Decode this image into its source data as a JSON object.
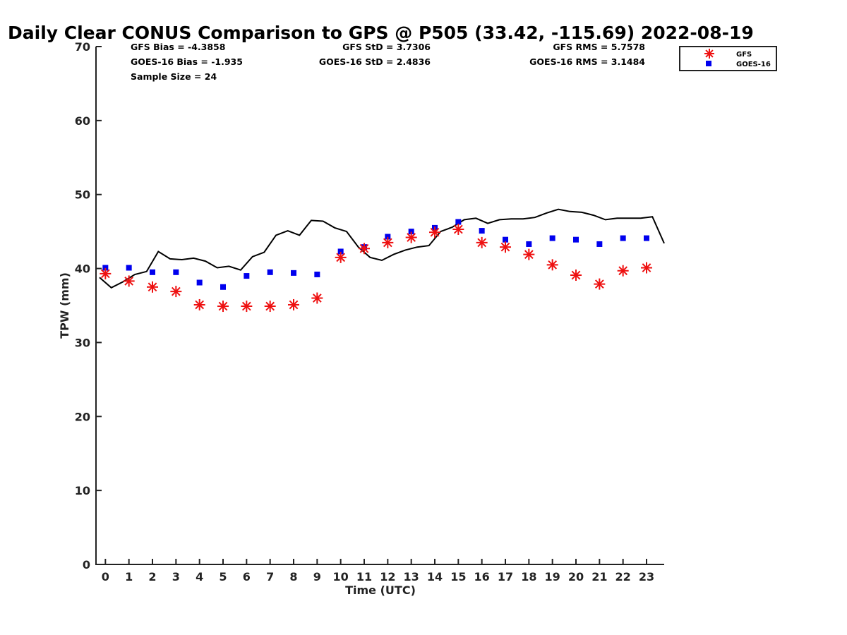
{
  "chart_data": {
    "type": "scatter",
    "title": "Daily Clear CONUS Comparison to GPS @ P505 (33.42, -115.69) 2022-08-19",
    "xlabel": "Time (UTC)",
    "ylabel": "TPW (mm)",
    "xlim": [
      -0.4,
      23.75
    ],
    "ylim": [
      0,
      70
    ],
    "xticks": [
      0,
      1,
      2,
      3,
      4,
      5,
      6,
      7,
      8,
      9,
      10,
      11,
      12,
      13,
      14,
      15,
      16,
      17,
      18,
      19,
      20,
      21,
      22,
      23
    ],
    "yticks": [
      0,
      10,
      20,
      30,
      40,
      50,
      60,
      70
    ],
    "grid": false,
    "legend_position": "top-right (outside plot)",
    "stats": {
      "gfs_bias": "GFS Bias = -4.3858",
      "goes_bias": "GOES-16 Bias = -1.935",
      "sample_size": "Sample Size = 24",
      "gfs_std": "GFS StD = 3.7306",
      "goes_std": "GOES-16 StD = 2.4836",
      "gfs_rms": "GFS RMS = 5.7578",
      "goes_rms": "GOES-16 RMS = 3.1484"
    },
    "series": [
      {
        "name": "GFS",
        "marker": "asterisk",
        "color": "#ee1111",
        "x": [
          0,
          1,
          2,
          3,
          4,
          5,
          6,
          7,
          8,
          9,
          10,
          11,
          12,
          13,
          14,
          15,
          16,
          17,
          18,
          19,
          20,
          21,
          22,
          23
        ],
        "values": [
          39.3,
          38.3,
          37.5,
          36.9,
          35.1,
          34.9,
          34.9,
          34.9,
          35.1,
          36.0,
          41.5,
          42.7,
          43.5,
          44.2,
          44.9,
          45.3,
          43.5,
          42.9,
          41.9,
          40.5,
          39.1,
          37.9,
          39.7,
          40.1
        ]
      },
      {
        "name": "GOES-16",
        "marker": "square",
        "color": "#0000ee",
        "x": [
          0,
          1,
          2,
          3,
          4,
          5,
          6,
          7,
          8,
          9,
          10,
          11,
          12,
          13,
          14,
          15,
          16,
          17,
          18,
          19,
          20,
          21,
          22,
          23
        ],
        "values": [
          40.1,
          40.1,
          39.5,
          39.5,
          38.1,
          37.5,
          39.0,
          39.5,
          39.4,
          39.2,
          42.3,
          42.9,
          44.3,
          45.0,
          45.5,
          46.3,
          45.1,
          43.9,
          43.3,
          44.1,
          43.9,
          43.3,
          44.1,
          44.1
        ]
      },
      {
        "name": "GPS",
        "marker": "line",
        "color": "#000000",
        "x": [
          -0.25,
          0.25,
          0.75,
          1.25,
          1.75,
          2.25,
          2.75,
          3.25,
          3.75,
          4.25,
          4.75,
          5.25,
          5.75,
          6.25,
          6.75,
          7.25,
          7.75,
          8.25,
          8.75,
          9.25,
          9.75,
          10.25,
          10.75,
          11.25,
          11.75,
          12.25,
          12.75,
          13.25,
          13.75,
          14.25,
          14.75,
          15.25,
          15.75,
          16.25,
          16.75,
          17.25,
          17.75,
          18.25,
          18.75,
          19.25,
          19.75,
          20.25,
          20.75,
          21.25,
          21.75,
          22.25,
          22.75,
          23.25,
          23.75
        ],
        "values": [
          38.8,
          37.4,
          38.2,
          39.2,
          39.6,
          42.3,
          41.3,
          41.2,
          41.4,
          41.0,
          40.1,
          40.3,
          39.8,
          41.6,
          42.2,
          44.5,
          45.1,
          44.5,
          46.5,
          46.4,
          45.5,
          45.0,
          42.9,
          41.5,
          41.1,
          41.9,
          42.5,
          42.9,
          43.1,
          45.0,
          45.6,
          46.6,
          46.8,
          46.1,
          46.6,
          46.7,
          46.7,
          46.9,
          47.5,
          48.0,
          47.7,
          47.6,
          47.2,
          46.6,
          46.8,
          46.8,
          46.8,
          47.0,
          43.4
        ]
      }
    ]
  },
  "legend": {
    "items": [
      {
        "label": "GFS",
        "color": "#ee1111",
        "icon": "asterisk-marker"
      },
      {
        "label": "GOES-16",
        "color": "#0000ee",
        "icon": "square-marker"
      }
    ]
  }
}
